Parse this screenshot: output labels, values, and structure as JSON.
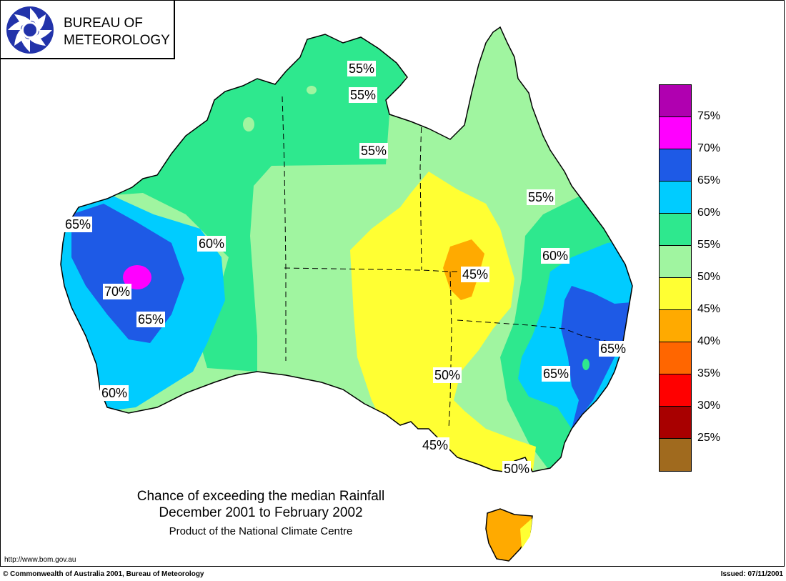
{
  "logo": {
    "line1": "BUREAU OF",
    "line2": "METEOROLOGY",
    "icon": "bom-swirl-logo"
  },
  "caption": {
    "title_line1": "Chance of exceeding the median Rainfall",
    "title_line2": "December 2001 to February 2002",
    "subtitle": "Product of the National Climate Centre"
  },
  "url": "http://www.bom.gov.au",
  "footer": {
    "copyright": "© Commonwealth of Australia 2001, Bureau of Meteorology",
    "issued": "Issued: 07/11/2001"
  },
  "legend": {
    "items": [
      {
        "label": "",
        "color": "#b000b0"
      },
      {
        "label": "75%",
        "color": "#ff00ff"
      },
      {
        "label": "70%",
        "color": "#1e5ae6"
      },
      {
        "label": "65%",
        "color": "#00ccff"
      },
      {
        "label": "60%",
        "color": "#2ee88e"
      },
      {
        "label": "55%",
        "color": "#a0f5a0"
      },
      {
        "label": "50%",
        "color": "#ffff33"
      },
      {
        "label": "45%",
        "color": "#ffaa00"
      },
      {
        "label": "40%",
        "color": "#ff6600"
      },
      {
        "label": "35%",
        "color": "#ff0000"
      },
      {
        "label": "30%",
        "color": "#a80000"
      },
      {
        "label": "25%",
        "color": "#a06a1e"
      }
    ]
  },
  "contour_labels": [
    {
      "id": "n-55a",
      "text": "55%"
    },
    {
      "id": "n-55b",
      "text": "55%"
    },
    {
      "id": "nt-55",
      "text": "55%"
    },
    {
      "id": "qld-55",
      "text": "55%"
    },
    {
      "id": "wa-65a",
      "text": "65%"
    },
    {
      "id": "wa-60",
      "text": "60%"
    },
    {
      "id": "wa-70",
      "text": "70%"
    },
    {
      "id": "wa-65b",
      "text": "65%"
    },
    {
      "id": "sw-60",
      "text": "60%"
    },
    {
      "id": "nsw-60",
      "text": "60%"
    },
    {
      "id": "c-45",
      "text": "45%"
    },
    {
      "id": "e-65a",
      "text": "65%"
    },
    {
      "id": "e-65b",
      "text": "65%"
    },
    {
      "id": "sa-50",
      "text": "50%"
    },
    {
      "id": "vic-45",
      "text": "45%"
    },
    {
      "id": "vic-50",
      "text": "50%"
    }
  ]
}
